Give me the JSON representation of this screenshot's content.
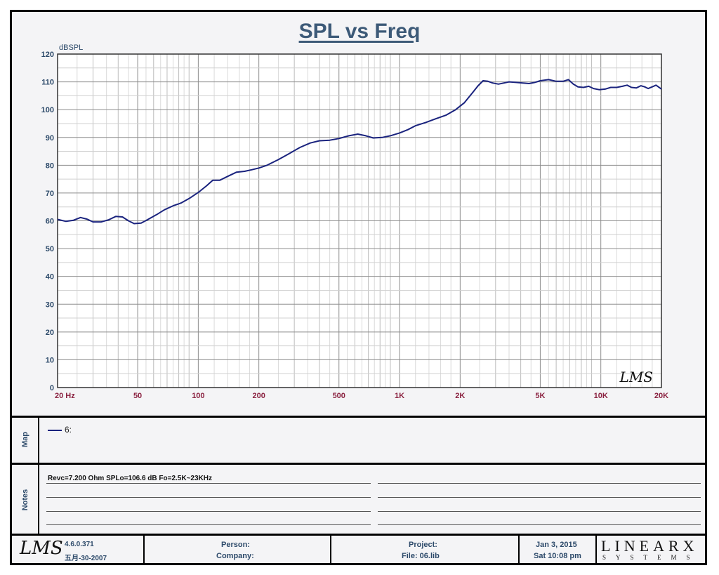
{
  "chart_data": {
    "type": "line",
    "title": "SPL vs Freq",
    "ylabel": "dBSPL",
    "xscale": "log",
    "xlim": [
      20,
      20000
    ],
    "ylim": [
      0,
      120
    ],
    "yticks": [
      0,
      10,
      20,
      30,
      40,
      50,
      60,
      70,
      80,
      90,
      100,
      110,
      120
    ],
    "xtick_labels": [
      {
        "v": 20,
        "t": "20  Hz"
      },
      {
        "v": 50,
        "t": "50"
      },
      {
        "v": 100,
        "t": "100"
      },
      {
        "v": 200,
        "t": "200"
      },
      {
        "v": 500,
        "t": "500"
      },
      {
        "v": 1000,
        "t": "1K"
      },
      {
        "v": 2000,
        "t": "2K"
      },
      {
        "v": 5000,
        "t": "5K"
      },
      {
        "v": 10000,
        "t": "10K"
      },
      {
        "v": 20000,
        "t": "20K"
      }
    ],
    "grid": true,
    "watermark": "LMS",
    "series": [
      {
        "name": "6:",
        "color": "#1a237e",
        "points": [
          [
            20,
            60.5
          ],
          [
            22,
            59.8
          ],
          [
            24,
            60.2
          ],
          [
            26,
            61.2
          ],
          [
            28,
            60.6
          ],
          [
            30,
            59.6
          ],
          [
            33,
            59.6
          ],
          [
            36,
            60.4
          ],
          [
            39,
            61.6
          ],
          [
            42,
            61.4
          ],
          [
            45,
            60
          ],
          [
            48,
            59
          ],
          [
            52,
            59.2
          ],
          [
            56,
            60.4
          ],
          [
            62,
            62.2
          ],
          [
            68,
            64
          ],
          [
            75,
            65.4
          ],
          [
            82,
            66.4
          ],
          [
            90,
            68
          ],
          [
            100,
            70.2
          ],
          [
            110,
            72.6
          ],
          [
            118,
            74.6
          ],
          [
            128,
            74.6
          ],
          [
            140,
            76
          ],
          [
            155,
            77.5
          ],
          [
            170,
            77.8
          ],
          [
            185,
            78.4
          ],
          [
            200,
            79
          ],
          [
            220,
            80
          ],
          [
            250,
            82
          ],
          [
            280,
            84
          ],
          [
            320,
            86.4
          ],
          [
            360,
            88
          ],
          [
            400,
            88.8
          ],
          [
            450,
            89
          ],
          [
            500,
            89.6
          ],
          [
            560,
            90.6
          ],
          [
            620,
            91.2
          ],
          [
            680,
            90.6
          ],
          [
            740,
            89.8
          ],
          [
            820,
            90
          ],
          [
            900,
            90.6
          ],
          [
            1000,
            91.6
          ],
          [
            1100,
            92.8
          ],
          [
            1200,
            94.2
          ],
          [
            1350,
            95.4
          ],
          [
            1500,
            96.6
          ],
          [
            1700,
            98
          ],
          [
            1900,
            100
          ],
          [
            2100,
            102.5
          ],
          [
            2300,
            106
          ],
          [
            2450,
            108.5
          ],
          [
            2600,
            110.4
          ],
          [
            2750,
            110.2
          ],
          [
            2900,
            109.6
          ],
          [
            3100,
            109.2
          ],
          [
            3300,
            109.6
          ],
          [
            3500,
            110
          ],
          [
            3800,
            109.8
          ],
          [
            4100,
            109.6
          ],
          [
            4400,
            109.4
          ],
          [
            4700,
            109.8
          ],
          [
            5000,
            110.4
          ],
          [
            5500,
            110.8
          ],
          [
            6000,
            110.2
          ],
          [
            6500,
            110.2
          ],
          [
            6900,
            110.8
          ],
          [
            7300,
            109.2
          ],
          [
            7700,
            108.2
          ],
          [
            8200,
            108
          ],
          [
            8700,
            108.4
          ],
          [
            9200,
            107.6
          ],
          [
            9800,
            107.2
          ],
          [
            10500,
            107.4
          ],
          [
            11200,
            108
          ],
          [
            12000,
            108
          ],
          [
            12800,
            108.4
          ],
          [
            13500,
            108.8
          ],
          [
            14200,
            108
          ],
          [
            15000,
            107.8
          ],
          [
            15800,
            108.6
          ],
          [
            16500,
            108.2
          ],
          [
            17200,
            107.6
          ],
          [
            18000,
            108.2
          ],
          [
            18800,
            108.8
          ],
          [
            19500,
            108
          ],
          [
            20000,
            107.4
          ]
        ]
      }
    ]
  },
  "map": {
    "label": "Map",
    "legend": [
      {
        "name": "6:",
        "color": "#1a237e"
      }
    ]
  },
  "notes": {
    "label": "Notes",
    "text": "Revc=7.200 Ohm   SPLo=106.6 dB   Fo=2.5K~23KHz"
  },
  "footer": {
    "logo": "LMS",
    "version": "4.6.0.371",
    "build": "五月-30-2007",
    "person_label": "Person:",
    "company_label": "Company:",
    "project_label": "Project:",
    "file_label": "File:  06.lib",
    "date": "Jan  3, 2015",
    "time": "Sat 10:08 pm",
    "brand": "LINEARX",
    "brand_sub": "SYSTEMS"
  }
}
